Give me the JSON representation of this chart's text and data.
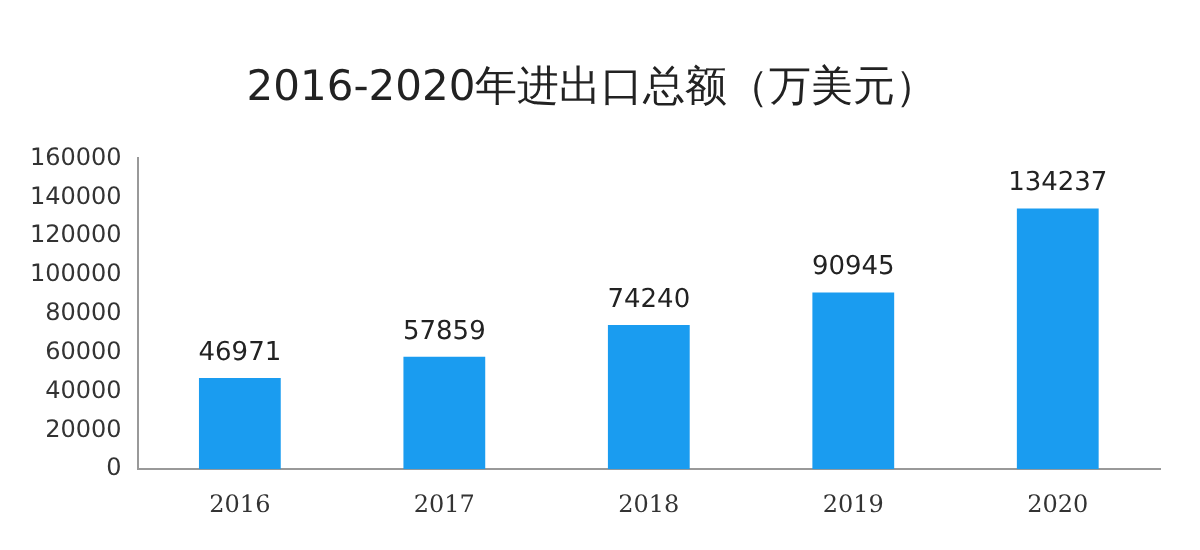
{
  "chart_data": {
    "type": "bar",
    "title": "2016-2020年进出口总额（万美元）",
    "categories": [
      "2016",
      "2017",
      "2018",
      "2019",
      "2020"
    ],
    "values": [
      46971,
      57859,
      74240,
      90945,
      134237
    ],
    "color": "#1a9cf0",
    "ylim": [
      0,
      160000
    ],
    "yticks": [
      0,
      20000,
      40000,
      60000,
      80000,
      100000,
      120000,
      140000,
      160000
    ],
    "grid": false,
    "data_labels": true,
    "legend": false
  }
}
